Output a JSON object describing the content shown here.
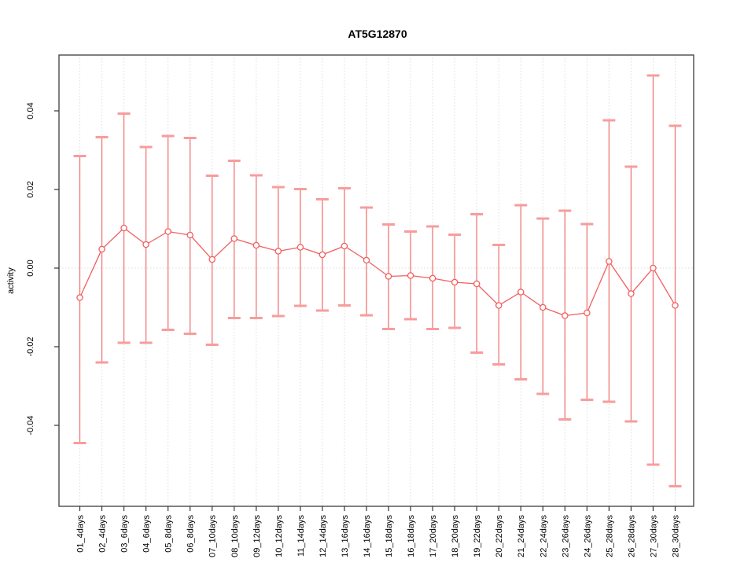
{
  "title": "AT5G12870",
  "chart_data": {
    "type": "line",
    "title": "AT5G12870",
    "xlabel": "",
    "ylabel": "activity",
    "legend_position": "none",
    "grid": "dotted vertical gridline at each category; dotted horizontal line at 0",
    "point_style": "open circle with error bars",
    "ytick_labels": [
      "0.04",
      "0.02",
      "0.00",
      "-0.02",
      "-0.04"
    ],
    "ytick_values": [
      0.04,
      0.02,
      0.0,
      -0.02,
      -0.04
    ],
    "ylim": [
      -0.0608,
      0.0542
    ],
    "categories": [
      "01_4days",
      "02_4days",
      "03_6days",
      "04_6days",
      "05_8days",
      "06_8days",
      "07_10days",
      "08_10days",
      "09_12days",
      "10_12days",
      "11_14days",
      "12_14days",
      "13_16days",
      "14_16days",
      "15_18days",
      "16_18days",
      "17_20days",
      "18_20days",
      "19_22days",
      "20_22days",
      "21_24days",
      "22_24days",
      "23_26days",
      "24_26days",
      "25_28days",
      "26_28days",
      "27_30days",
      "28_30days"
    ],
    "series": [
      {
        "name": "activity_mean",
        "values": [
          -0.0075,
          0.0048,
          0.0102,
          0.006,
          0.0093,
          0.0084,
          0.0022,
          0.0075,
          0.0058,
          0.0043,
          0.0053,
          0.0034,
          0.0056,
          0.002,
          -0.0021,
          -0.0019,
          -0.0026,
          -0.0036,
          -0.004,
          -0.0095,
          -0.0061,
          -0.01,
          -0.0121,
          -0.0114,
          0.0017,
          -0.0065,
          0.0,
          -0.0095
        ]
      },
      {
        "name": "error_upper",
        "values": [
          0.0285,
          0.0333,
          0.0393,
          0.0308,
          0.0336,
          0.0331,
          0.0235,
          0.0273,
          0.0236,
          0.0206,
          0.0201,
          0.0175,
          0.0203,
          0.0154,
          0.0111,
          0.0093,
          0.0106,
          0.0085,
          0.0137,
          0.0059,
          0.016,
          0.0126,
          0.0146,
          0.0112,
          0.0376,
          0.0258,
          0.049,
          0.0362
        ]
      },
      {
        "name": "error_lower",
        "values": [
          -0.0445,
          -0.024,
          -0.019,
          -0.019,
          -0.0157,
          -0.0167,
          -0.0195,
          -0.0127,
          -0.0127,
          -0.0122,
          -0.0096,
          -0.0108,
          -0.0095,
          -0.012,
          -0.0155,
          -0.013,
          -0.0155,
          -0.0152,
          -0.0215,
          -0.0245,
          -0.0283,
          -0.032,
          -0.0385,
          -0.0335,
          -0.034,
          -0.039,
          -0.05,
          -0.0555
        ]
      }
    ],
    "colors": {
      "series": "#F15F5F",
      "error_cap": "#F89C9C",
      "gridline": "#DCDCDC",
      "frame": "#4A4A4A",
      "tick": "#333333",
      "text": "#000000",
      "background": "#FFFFFF"
    }
  }
}
